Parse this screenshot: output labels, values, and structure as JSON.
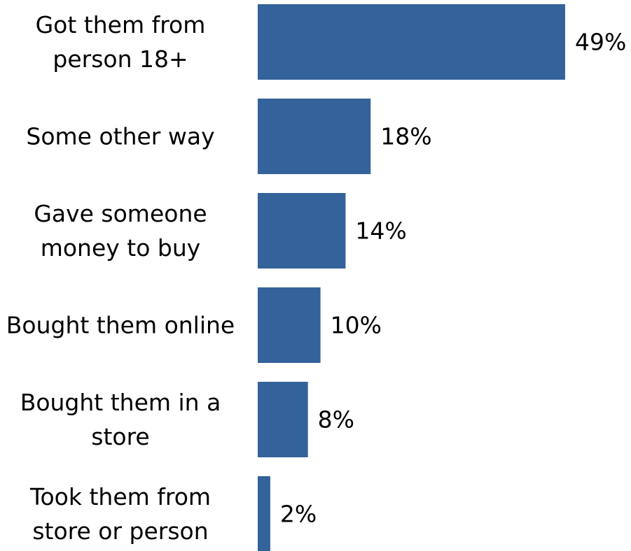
{
  "chart_data": {
    "type": "bar",
    "orientation": "horizontal",
    "categories": [
      [
        "Got them from",
        "person 18+"
      ],
      [
        "Some other way"
      ],
      [
        "Gave someone",
        "money to buy"
      ],
      [
        "Bought them online"
      ],
      [
        "Bought them in a",
        "store"
      ],
      [
        "Took them from",
        "store or person"
      ]
    ],
    "values": [
      49,
      18,
      14,
      10,
      8,
      2
    ],
    "value_labels": [
      "49%",
      "18%",
      "14%",
      "10%",
      "8%",
      "2%"
    ],
    "xlim": [
      0,
      48
    ],
    "grid": false,
    "legend": "none",
    "bar_color": "#34629A"
  }
}
